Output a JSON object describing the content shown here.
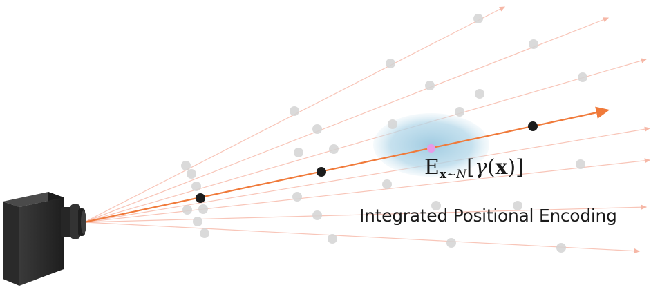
{
  "formula": {
    "operator": "E",
    "subscript_var": "x",
    "subscript_rel": "~",
    "subscript_dist": "N",
    "open_bracket": "[",
    "function": "γ",
    "argument_open": "(",
    "argument": "x",
    "argument_close": ")",
    "close_bracket": "]"
  },
  "caption": "Integrated Positional Encoding",
  "colors": {
    "main_ray": "#f07a3a",
    "faint_ray": "#f6b7a6",
    "sample_point": "#1c1c1c",
    "faint_point": "#d4d4d4",
    "gaussian_blob": "#a9d1e6",
    "mean_point": "#e79be8",
    "camera_body": "#2b2b2b"
  },
  "icons": {
    "camera": "camera-icon"
  }
}
